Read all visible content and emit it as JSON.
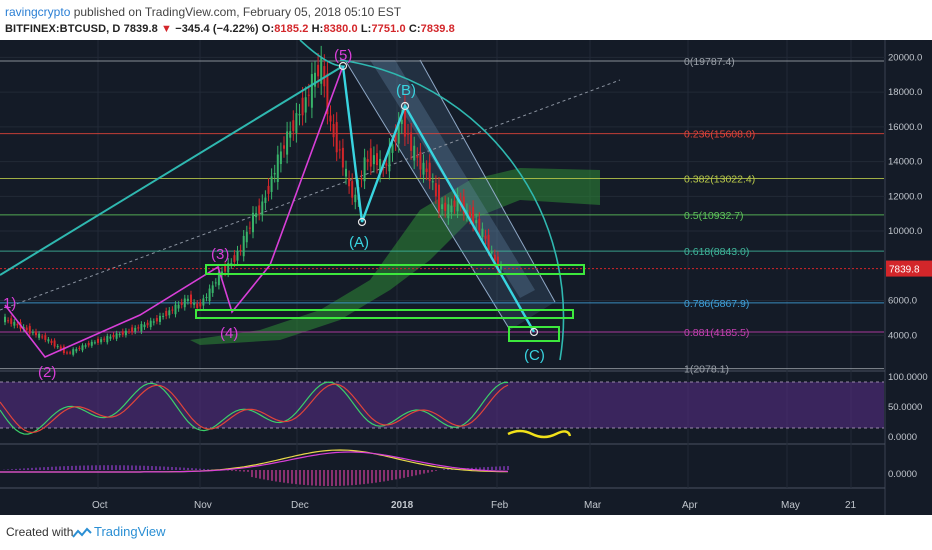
{
  "header": {
    "author": "ravingcrypto",
    "published_text": " published on TradingView.com, February 05, 2018 05:10 EST",
    "symbol": "BITFINEX:BTCUSD, D",
    "price": "7839.8",
    "change": "−345.4 (−4.22%)",
    "open_label": "O:",
    "open": "8185.2",
    "high_label": "H:",
    "high": "8380.0",
    "low_label": "L:",
    "low": "7751.0",
    "close_label": "C:",
    "close": "7839.8"
  },
  "chart_data": {
    "type": "line",
    "title": "BITFINEX:BTCUSD, D",
    "x_ticks": [
      "Oct",
      "Nov",
      "Dec",
      "2018",
      "Feb",
      "Mar",
      "Apr",
      "May",
      "21"
    ],
    "y_ticks": [
      "20000.0",
      "18000.0",
      "16000.0",
      "14000.0",
      "12000.0",
      "10000.0",
      "6000.0",
      "4000.0"
    ],
    "ylim": [
      2000,
      21000
    ],
    "last_price_label": "7839.8",
    "series": [
      {
        "values": [
          {
            "x": 0,
            "y": 5000
          },
          {
            "x": 14,
            "y": 3800
          },
          {
            "x": 21,
            "y": 2950
          },
          {
            "x": 28,
            "y": 3500
          },
          {
            "x": 35,
            "y": 3900
          },
          {
            "x": 42,
            "y": 4300
          },
          {
            "x": 49,
            "y": 4800
          },
          {
            "x": 56,
            "y": 5600
          },
          {
            "x": 60,
            "y": 6100
          },
          {
            "x": 63,
            "y": 5600
          },
          {
            "x": 67,
            "y": 6500
          },
          {
            "x": 70,
            "y": 7500
          },
          {
            "x": 74,
            "y": 8200
          },
          {
            "x": 77,
            "y": 9000
          },
          {
            "x": 81,
            "y": 10800
          },
          {
            "x": 84,
            "y": 11500
          },
          {
            "x": 88,
            "y": 13500
          },
          {
            "x": 91,
            "y": 15000
          },
          {
            "x": 95,
            "y": 16500
          },
          {
            "x": 98,
            "y": 17500
          },
          {
            "x": 101,
            "y": 19000
          },
          {
            "x": 103,
            "y": 19500
          },
          {
            "x": 106,
            "y": 16000
          },
          {
            "x": 109,
            "y": 14500
          },
          {
            "x": 112,
            "y": 12500
          },
          {
            "x": 114,
            "y": 11800
          },
          {
            "x": 117,
            "y": 14000
          },
          {
            "x": 120,
            "y": 14200
          },
          {
            "x": 123,
            "y": 13500
          },
          {
            "x": 126,
            "y": 15000
          },
          {
            "x": 129,
            "y": 16500
          },
          {
            "x": 132,
            "y": 14800
          },
          {
            "x": 135,
            "y": 13800
          },
          {
            "x": 138,
            "y": 13200
          },
          {
            "x": 141,
            "y": 11500
          },
          {
            "x": 144,
            "y": 11200
          },
          {
            "x": 147,
            "y": 11800
          },
          {
            "x": 150,
            "y": 11000
          },
          {
            "x": 153,
            "y": 10500
          },
          {
            "x": 156,
            "y": 9500
          },
          {
            "x": 159,
            "y": 8200
          },
          {
            "x": 161,
            "y": 7840
          }
        ]
      }
    ],
    "fib_levels": [
      {
        "label": "0(19787.4)",
        "value": 19787.4,
        "color": "#9aa0a8"
      },
      {
        "label": "0.236(15608.0)",
        "value": 15608.0,
        "color": "#e0443a"
      },
      {
        "label": "0.382(13022.4)",
        "value": 13022.4,
        "color": "#b8c84a"
      },
      {
        "label": "0.5(10932.7)",
        "value": 10932.7,
        "color": "#5ec45a"
      },
      {
        "label": "0.618(8843.0)",
        "value": 8843.0,
        "color": "#3fb59a"
      },
      {
        "label": "0.786(5867.9)",
        "value": 5867.9,
        "color": "#3f9fd8"
      },
      {
        "label": "0.881(4185.5)",
        "value": 4185.5,
        "color": "#c440b0"
      },
      {
        "label": "1(2078.1)",
        "value": 2078.1,
        "color": "#9aa0a8"
      }
    ],
    "wave_labels": [
      "1)",
      "(2)",
      "(3)",
      "(4)",
      "(5)",
      "(A)",
      "(B)",
      "(C)"
    ],
    "stoch_ticks": [
      "100.0000",
      "50.0000",
      "0.0000"
    ],
    "macd_ticks": [
      "0.0000"
    ]
  },
  "footer": {
    "created_with": "Created with",
    "brand": "TradingView"
  },
  "colors": {
    "background": "#141b27",
    "candle_up": "#38b36a",
    "candle_down": "#d3262a",
    "impulse": "#d83fd8",
    "correction": "#39d4e0",
    "box": "#3de83d",
    "cloud": "#2e8a36"
  }
}
